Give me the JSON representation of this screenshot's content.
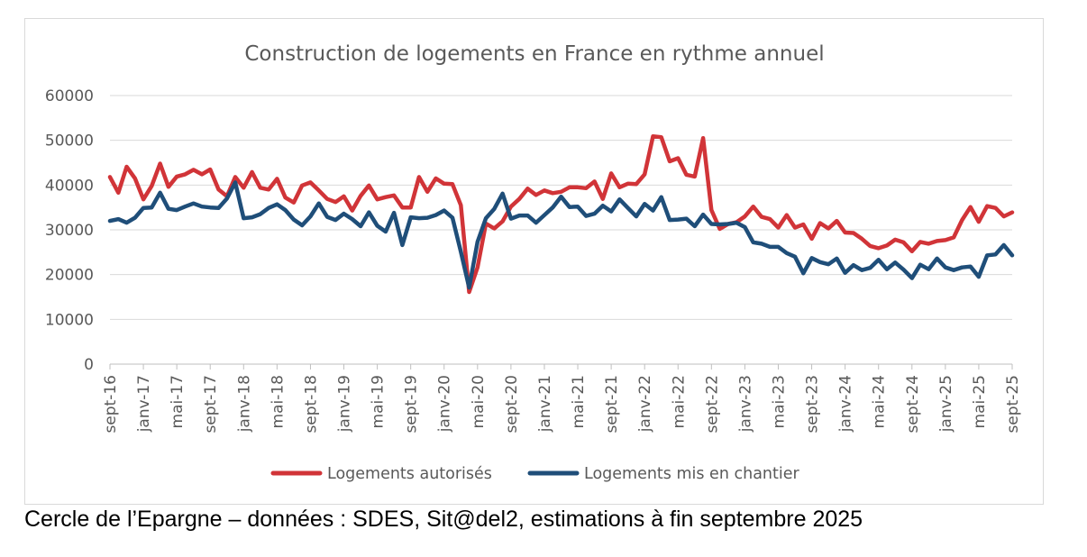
{
  "caption": "Cercle de l’Epargne – données : SDES, Sit@del2, estimations à fin septembre 2025",
  "chart_data": {
    "type": "line",
    "title": "Construction de logements en France en rythme annuel",
    "xlabel": "",
    "ylabel": "",
    "ylim": [
      0,
      60000
    ],
    "yticks": [
      0,
      10000,
      20000,
      30000,
      40000,
      50000,
      60000
    ],
    "grid": true,
    "legend_position": "bottom",
    "x": [
      "sept-16",
      "oct-16",
      "nov-16",
      "déc-16",
      "janv-17",
      "févr-17",
      "mars-17",
      "avr-17",
      "mai-17",
      "juin-17",
      "juil-17",
      "août-17",
      "sept-17",
      "oct-17",
      "nov-17",
      "déc-17",
      "janv-18",
      "févr-18",
      "mars-18",
      "avr-18",
      "mai-18",
      "juin-18",
      "juil-18",
      "août-18",
      "sept-18",
      "oct-18",
      "nov-18",
      "déc-18",
      "janv-19",
      "févr-19",
      "mars-19",
      "avr-19",
      "mai-19",
      "juin-19",
      "juil-19",
      "août-19",
      "sept-19",
      "oct-19",
      "nov-19",
      "déc-19",
      "janv-20",
      "févr-20",
      "mars-20",
      "avr-20",
      "mai-20",
      "juin-20",
      "juil-20",
      "août-20",
      "sept-20",
      "oct-20",
      "nov-20",
      "déc-20",
      "janv-21",
      "févr-21",
      "mars-21",
      "avr-21",
      "mai-21",
      "juin-21",
      "juil-21",
      "août-21",
      "sept-21",
      "oct-21",
      "nov-21",
      "déc-21",
      "janv-22",
      "févr-22",
      "mars-22",
      "avr-22",
      "mai-22",
      "juin-22",
      "juil-22",
      "août-22",
      "sept-22",
      "oct-22",
      "nov-22",
      "déc-22",
      "janv-23",
      "févr-23",
      "mars-23",
      "avr-23",
      "mai-23",
      "juin-23",
      "juil-23",
      "août-23",
      "sept-23",
      "oct-23",
      "nov-23",
      "déc-23",
      "janv-24",
      "févr-24",
      "mars-24",
      "avr-24",
      "mai-24",
      "juin-24",
      "juil-24",
      "août-24",
      "sept-24",
      "oct-24",
      "nov-24",
      "déc-24",
      "janv-25",
      "févr-25",
      "mars-25",
      "avr-25",
      "mai-25",
      "juin-25",
      "juil-25",
      "août-25",
      "sept-25"
    ],
    "tick_labels": [
      "sept-16",
      "janv-17",
      "mai-17",
      "sept-17",
      "janv-18",
      "mai-18",
      "sept-18",
      "janv-19",
      "mai-19",
      "sept-19",
      "janv-20",
      "mai-20",
      "sept-20",
      "janv-21",
      "mai-21",
      "sept-21",
      "janv-22",
      "mai-22",
      "sept-22",
      "janv-23",
      "mai-23",
      "sept-23",
      "janv-24",
      "mai-24",
      "sept-24",
      "janv-25",
      "mai-25",
      "sept-25"
    ],
    "series": [
      {
        "name": "Logements autorisés",
        "color": "#d13438",
        "values": [
          41800,
          38300,
          44100,
          41500,
          36800,
          39800,
          44800,
          39600,
          41900,
          42400,
          43400,
          42400,
          43500,
          39000,
          37500,
          41800,
          39400,
          42900,
          39400,
          39000,
          41400,
          37200,
          36100,
          39900,
          40600,
          38800,
          36900,
          36200,
          37500,
          34300,
          37600,
          39900,
          36800,
          37300,
          37700,
          35000,
          35000,
          41800,
          38500,
          41500,
          40300,
          40200,
          35500,
          16100,
          21600,
          31400,
          30300,
          31900,
          35200,
          36900,
          39200,
          37800,
          38800,
          38200,
          38500,
          39500,
          39500,
          39300,
          40800,
          36900,
          42600,
          39500,
          40300,
          40200,
          42400,
          50900,
          50700,
          45300,
          46000,
          42300,
          41900,
          50500,
          34400,
          30200,
          31300,
          31700,
          33000,
          35200,
          32900,
          32400,
          30500,
          33300,
          30500,
          31200,
          28000,
          31500,
          30300,
          32000,
          29400,
          29300,
          28000,
          26400,
          25900,
          26500,
          27800,
          27200,
          25200,
          27300,
          26900,
          27500,
          27700,
          28300,
          32200,
          35100,
          31800,
          35300,
          34900,
          33000,
          33900
        ]
      },
      {
        "name": "Logements mis en chantier",
        "color": "#1f4e79",
        "values": [
          32000,
          32400,
          31600,
          32700,
          34900,
          35000,
          38300,
          34700,
          34400,
          35200,
          35900,
          35200,
          35000,
          34900,
          37000,
          40600,
          32600,
          32800,
          33500,
          34900,
          35700,
          34400,
          32300,
          31000,
          33000,
          35900,
          32900,
          32200,
          33600,
          32400,
          30800,
          33900,
          30900,
          29600,
          33800,
          26600,
          32800,
          32600,
          32700,
          33300,
          34300,
          32700,
          25100,
          17100,
          27300,
          32600,
          34700,
          38100,
          32500,
          33200,
          33200,
          31600,
          33300,
          35000,
          37400,
          35100,
          35200,
          33100,
          33600,
          35400,
          34100,
          36800,
          34900,
          33000,
          35800,
          34300,
          37300,
          32200,
          32300,
          32500,
          30800,
          33400,
          31300,
          31200,
          31300,
          31600,
          30600,
          27200,
          26900,
          26200,
          26200,
          24800,
          24000,
          20300,
          23700,
          22800,
          22300,
          23600,
          20400,
          22100,
          21000,
          21500,
          23300,
          21200,
          22700,
          21100,
          19200,
          22200,
          21200,
          23600,
          21600,
          21000,
          21600,
          21800,
          19500,
          24300,
          24500,
          26600,
          24300
        ]
      }
    ]
  }
}
